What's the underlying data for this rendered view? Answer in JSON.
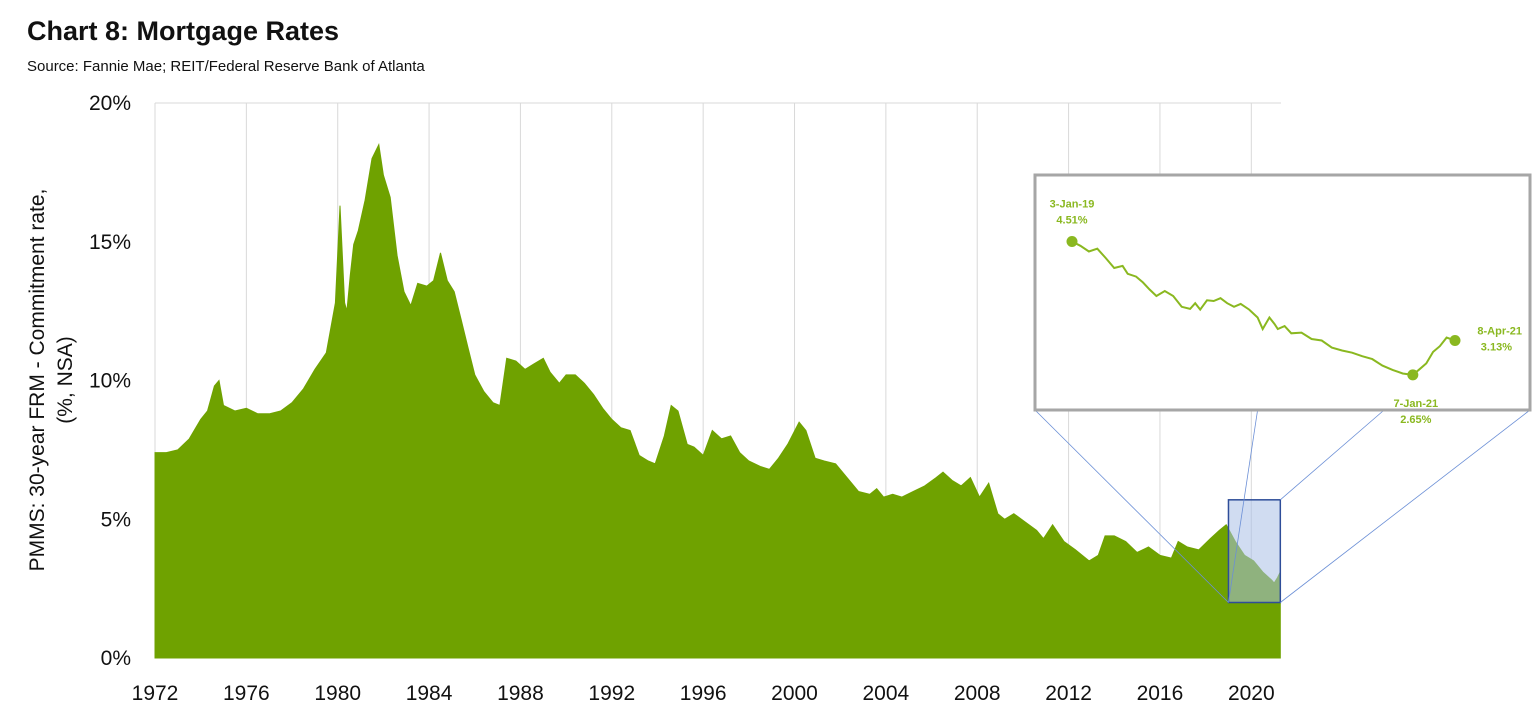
{
  "title": "Chart 8: Mortgage Rates",
  "subtitle": "Source: Fannie Mae; REIT/Federal Reserve Bank of Atlanta",
  "colors": {
    "area": "#6fa200",
    "inset_line": "#8ab820",
    "highlight_fill": "#a9c0e6",
    "highlight_stroke": "#2e4d99",
    "grid": "#d9d9d9",
    "connector": "#6b8fd6"
  },
  "chart_data": {
    "type": "area",
    "ylabel_line1": "PMMS: 30-year FRM - Commitment rate,",
    "ylabel_line2": "(%, NSA)",
    "ylim": [
      0,
      20
    ],
    "xlim": [
      1972,
      2021.3
    ],
    "yticks": [
      0,
      5,
      10,
      15,
      20
    ],
    "ytick_labels": [
      "0%",
      "5%",
      "10%",
      "15%",
      "20%"
    ],
    "xticks": [
      1972,
      1976,
      1980,
      1984,
      1988,
      1992,
      1996,
      2000,
      2004,
      2008,
      2012,
      2016,
      2020
    ],
    "xtick_labels": [
      "1972",
      "1976",
      "1980",
      "1984",
      "1988",
      "1992",
      "1996",
      "2000",
      "2004",
      "2008",
      "2012",
      "2016",
      "2020"
    ],
    "grid": "vertical",
    "series": [
      {
        "x": [
          1972.0,
          1972.5,
          1973.0,
          1973.5,
          1974.0,
          1974.3,
          1974.6,
          1974.8,
          1975.0,
          1975.5,
          1976.0,
          1976.5,
          1977.0,
          1977.5,
          1978.0,
          1978.5,
          1979.0,
          1979.5,
          1979.9,
          1980.1,
          1980.3,
          1980.4,
          1980.55,
          1980.7,
          1980.9,
          1981.2,
          1981.5,
          1981.8,
          1982.0,
          1982.3,
          1982.6,
          1982.9,
          1983.2,
          1983.5,
          1983.9,
          1984.2,
          1984.5,
          1984.8,
          1985.1,
          1985.4,
          1985.7,
          1986.0,
          1986.4,
          1986.8,
          1987.1,
          1987.4,
          1987.8,
          1988.2,
          1988.6,
          1989.0,
          1989.3,
          1989.7,
          1990.0,
          1990.4,
          1990.8,
          1991.2,
          1991.6,
          1992.0,
          1992.4,
          1992.8,
          1993.2,
          1993.6,
          1993.9,
          1994.3,
          1994.6,
          1994.9,
          1995.3,
          1995.6,
          1996.0,
          1996.4,
          1996.8,
          1997.2,
          1997.6,
          1998.0,
          1998.5,
          1998.9,
          1999.3,
          1999.7,
          2000.2,
          2000.5,
          2000.9,
          2001.3,
          2001.8,
          2002.3,
          2002.8,
          2003.3,
          2003.6,
          2003.9,
          2004.3,
          2004.7,
          2005.2,
          2005.7,
          2006.2,
          2006.5,
          2006.9,
          2007.3,
          2007.7,
          2008.1,
          2008.5,
          2008.9,
          2009.2,
          2009.6,
          2010.1,
          2010.6,
          2010.9,
          2011.3,
          2011.8,
          2012.3,
          2012.9,
          2013.3,
          2013.6,
          2014.0,
          2014.5,
          2015.0,
          2015.5,
          2016.0,
          2016.5,
          2016.8,
          2017.2,
          2017.7,
          2018.2,
          2018.6,
          2018.9,
          2019.3,
          2019.7,
          2020.1,
          2020.5,
          2020.9,
          2021.0,
          2021.15,
          2021.27
        ],
        "y": [
          7.4,
          7.4,
          7.5,
          7.9,
          8.6,
          8.9,
          9.8,
          10.0,
          9.1,
          8.9,
          9.0,
          8.8,
          8.8,
          8.9,
          9.2,
          9.7,
          10.4,
          11.0,
          12.8,
          16.3,
          12.8,
          12.5,
          13.8,
          14.9,
          15.4,
          16.5,
          18.0,
          18.5,
          17.4,
          16.6,
          14.5,
          13.2,
          12.7,
          13.5,
          13.4,
          13.6,
          14.6,
          13.6,
          13.2,
          12.2,
          11.2,
          10.2,
          9.6,
          9.2,
          9.1,
          10.8,
          10.7,
          10.4,
          10.6,
          10.8,
          10.3,
          9.9,
          10.2,
          10.2,
          9.9,
          9.5,
          9.0,
          8.6,
          8.3,
          8.2,
          7.3,
          7.1,
          7.0,
          8.0,
          9.1,
          8.9,
          7.7,
          7.6,
          7.3,
          8.2,
          7.9,
          8.0,
          7.4,
          7.1,
          6.9,
          6.8,
          7.2,
          7.7,
          8.5,
          8.2,
          7.2,
          7.1,
          7.0,
          6.5,
          6.0,
          5.9,
          6.1,
          5.8,
          5.9,
          5.8,
          6.0,
          6.2,
          6.5,
          6.7,
          6.4,
          6.2,
          6.5,
          5.8,
          6.3,
          5.2,
          5.0,
          5.2,
          4.9,
          4.6,
          4.3,
          4.8,
          4.2,
          3.9,
          3.5,
          3.7,
          4.4,
          4.4,
          4.2,
          3.8,
          4.0,
          3.7,
          3.6,
          4.2,
          4.0,
          3.9,
          4.3,
          4.6,
          4.8,
          4.2,
          3.7,
          3.5,
          3.1,
          2.8,
          2.7,
          2.9,
          3.1
        ]
      }
    ],
    "inset": {
      "x": [
        2019.0,
        2019.05,
        2019.1,
        2019.15,
        2019.2,
        2019.25,
        2019.3,
        2019.33,
        2019.38,
        2019.42,
        2019.46,
        2019.5,
        2019.55,
        2019.6,
        2019.65,
        2019.7,
        2019.73,
        2019.76,
        2019.8,
        2019.84,
        2019.88,
        2019.92,
        2019.96,
        2020.0,
        2020.05,
        2020.1,
        2020.13,
        2020.17,
        2020.2,
        2020.22,
        2020.26,
        2020.3,
        2020.36,
        2020.42,
        2020.48,
        2020.54,
        2020.6,
        2020.66,
        2020.72,
        2020.78,
        2020.84,
        2020.9,
        2020.96,
        2021.02,
        2021.06,
        2021.1,
        2021.14,
        2021.18,
        2021.22,
        2021.27
      ],
      "y": [
        4.51,
        4.45,
        4.37,
        4.41,
        4.28,
        4.14,
        4.17,
        4.06,
        4.02,
        3.94,
        3.84,
        3.75,
        3.82,
        3.75,
        3.6,
        3.57,
        3.65,
        3.56,
        3.69,
        3.68,
        3.72,
        3.65,
        3.6,
        3.64,
        3.56,
        3.45,
        3.29,
        3.45,
        3.36,
        3.29,
        3.33,
        3.23,
        3.24,
        3.15,
        3.13,
        3.03,
        2.99,
        2.96,
        2.91,
        2.87,
        2.78,
        2.72,
        2.67,
        2.65,
        2.73,
        2.81,
        2.97,
        3.05,
        3.17,
        3.13
      ],
      "ylim": [
        2.3,
        5.2
      ],
      "start_label_date": "3-Jan-19",
      "start_label_value": "4.51%",
      "min_label_date": "7-Jan-21",
      "min_label_value": "2.65%",
      "end_label_date": "8-Apr-21",
      "end_label_value": "3.13%",
      "start_x": 2019.0,
      "start_y": 4.51,
      "min_x": 2021.02,
      "min_y": 2.65,
      "end_x": 2021.27,
      "end_y": 3.13,
      "highlight_x": [
        2019.0,
        2021.27
      ],
      "highlight_y": [
        2.0,
        5.7
      ]
    }
  }
}
